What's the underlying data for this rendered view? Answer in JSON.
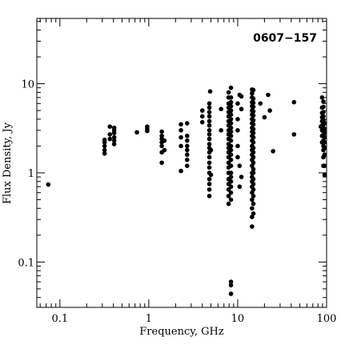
{
  "chart_data": {
    "type": "scatter",
    "title": "0607−157",
    "xlabel": "Frequency, GHz",
    "ylabel": "Flux Density, Jy",
    "xscale": "log",
    "yscale": "log",
    "xlim": [
      0.055,
      100
    ],
    "ylim": [
      0.031,
      54
    ],
    "xticks": [
      {
        "value": 0.1,
        "label": "0.1"
      },
      {
        "value": 1,
        "label": "1"
      },
      {
        "value": 10,
        "label": "10"
      },
      {
        "value": 100,
        "label": "100"
      }
    ],
    "yticks": [
      {
        "value": 0.1,
        "label": "0.1"
      },
      {
        "value": 1,
        "label": "1"
      },
      {
        "value": 10,
        "label": "10"
      }
    ],
    "grid": false,
    "legend": "none",
    "marker_color": "#000000",
    "points": [
      [
        0.074,
        0.74
      ],
      [
        0.318,
        1.65
      ],
      [
        0.318,
        1.8
      ],
      [
        0.318,
        2.0
      ],
      [
        0.318,
        2.2
      ],
      [
        0.318,
        2.35
      ],
      [
        0.365,
        2.4
      ],
      [
        0.365,
        2.7
      ],
      [
        0.365,
        3.3
      ],
      [
        0.408,
        2.1
      ],
      [
        0.408,
        2.3
      ],
      [
        0.408,
        2.5
      ],
      [
        0.408,
        2.8
      ],
      [
        0.408,
        3.0
      ],
      [
        0.408,
        3.2
      ],
      [
        0.735,
        2.85
      ],
      [
        0.96,
        2.95
      ],
      [
        0.96,
        3.1
      ],
      [
        0.96,
        3.3
      ],
      [
        1.4,
        1.3
      ],
      [
        1.4,
        1.7
      ],
      [
        1.4,
        2.0
      ],
      [
        1.4,
        2.2
      ],
      [
        1.4,
        2.4
      ],
      [
        1.4,
        2.6
      ],
      [
        1.4,
        2.9
      ],
      [
        1.5,
        1.8
      ],
      [
        1.5,
        2.3
      ],
      [
        2.3,
        1.05
      ],
      [
        2.3,
        2.0
      ],
      [
        2.3,
        2.5
      ],
      [
        2.3,
        3.0
      ],
      [
        2.3,
        3.5
      ],
      [
        2.7,
        1.2
      ],
      [
        2.7,
        1.4
      ],
      [
        2.7,
        1.6
      ],
      [
        2.7,
        1.8
      ],
      [
        2.7,
        2.0
      ],
      [
        2.7,
        2.3
      ],
      [
        2.7,
        2.6
      ],
      [
        2.7,
        3.6
      ],
      [
        4.0,
        3.7
      ],
      [
        4.0,
        4.3
      ],
      [
        4.0,
        5.0
      ],
      [
        4.8,
        0.55
      ],
      [
        4.8,
        0.65
      ],
      [
        4.8,
        0.75
      ],
      [
        4.8,
        0.85
      ],
      [
        4.8,
        1.0
      ],
      [
        4.8,
        1.15
      ],
      [
        4.8,
        1.3
      ],
      [
        4.8,
        1.5
      ],
      [
        4.8,
        1.7
      ],
      [
        4.8,
        1.9
      ],
      [
        4.8,
        2.1
      ],
      [
        4.8,
        2.4
      ],
      [
        4.8,
        2.7
      ],
      [
        4.8,
        3.0
      ],
      [
        4.8,
        3.4
      ],
      [
        4.8,
        3.8
      ],
      [
        4.8,
        4.3
      ],
      [
        4.8,
        4.8
      ],
      [
        4.8,
        5.4
      ],
      [
        4.8,
        6.0
      ],
      [
        4.9,
        8.2
      ],
      [
        5.0,
        0.95
      ],
      [
        5.0,
        1.8
      ],
      [
        6.5,
        3.0
      ],
      [
        6.5,
        5.2
      ],
      [
        7.9,
        0.45
      ],
      [
        7.9,
        0.55
      ],
      [
        7.9,
        0.65
      ],
      [
        7.9,
        0.75
      ],
      [
        7.9,
        0.85
      ],
      [
        7.9,
        1.0
      ],
      [
        7.9,
        1.15
      ],
      [
        7.9,
        1.3
      ],
      [
        7.9,
        1.5
      ],
      [
        7.9,
        1.7
      ],
      [
        7.9,
        1.9
      ],
      [
        7.9,
        2.1
      ],
      [
        7.9,
        2.4
      ],
      [
        7.9,
        2.7
      ],
      [
        7.9,
        3.0
      ],
      [
        7.9,
        3.4
      ],
      [
        7.9,
        3.8
      ],
      [
        7.9,
        4.3
      ],
      [
        7.9,
        4.8
      ],
      [
        7.9,
        5.4
      ],
      [
        7.9,
        6.0
      ],
      [
        7.9,
        7.0
      ],
      [
        7.9,
        8.0
      ],
      [
        8.4,
        0.044
      ],
      [
        8.4,
        0.055
      ],
      [
        8.4,
        0.06
      ],
      [
        8.4,
        0.5
      ],
      [
        8.4,
        0.6
      ],
      [
        8.4,
        0.7
      ],
      [
        8.4,
        0.8
      ],
      [
        8.4,
        0.9
      ],
      [
        8.4,
        1.0
      ],
      [
        8.4,
        1.2
      ],
      [
        8.4,
        1.4
      ],
      [
        8.4,
        1.6
      ],
      [
        8.4,
        1.8
      ],
      [
        8.4,
        2.0
      ],
      [
        8.4,
        2.3
      ],
      [
        8.4,
        2.6
      ],
      [
        8.4,
        2.9
      ],
      [
        8.4,
        3.2
      ],
      [
        8.4,
        3.6
      ],
      [
        8.4,
        4.0
      ],
      [
        8.4,
        4.5
      ],
      [
        8.4,
        5.0
      ],
      [
        8.4,
        5.6
      ],
      [
        8.4,
        6.2
      ],
      [
        8.4,
        7.0
      ],
      [
        8.4,
        9.0
      ],
      [
        10.0,
        1.5
      ],
      [
        10.0,
        2.0
      ],
      [
        10.0,
        3.0
      ],
      [
        10.0,
        4.0
      ],
      [
        10.0,
        6.0
      ],
      [
        10.5,
        0.7
      ],
      [
        10.5,
        1.2
      ],
      [
        10.5,
        7.5
      ],
      [
        11.0,
        0.9
      ],
      [
        11.0,
        5.2
      ],
      [
        11.0,
        7.2
      ],
      [
        14.5,
        0.25
      ],
      [
        14.5,
        0.32
      ],
      [
        14.5,
        0.4
      ],
      [
        14.5,
        0.5
      ],
      [
        14.5,
        0.6
      ],
      [
        14.5,
        0.7
      ],
      [
        14.5,
        0.8
      ],
      [
        14.5,
        0.9
      ],
      [
        14.5,
        1.0
      ],
      [
        14.5,
        1.2
      ],
      [
        14.5,
        1.4
      ],
      [
        14.5,
        1.6
      ],
      [
        14.5,
        1.8
      ],
      [
        14.5,
        2.0
      ],
      [
        14.5,
        2.3
      ],
      [
        14.5,
        2.6
      ],
      [
        14.5,
        2.9
      ],
      [
        14.5,
        3.2
      ],
      [
        14.5,
        3.6
      ],
      [
        14.5,
        4.0
      ],
      [
        14.5,
        4.5
      ],
      [
        14.5,
        5.0
      ],
      [
        14.5,
        5.6
      ],
      [
        14.5,
        6.2
      ],
      [
        14.5,
        7.0
      ],
      [
        14.5,
        7.8
      ],
      [
        14.5,
        8.6
      ],
      [
        15.0,
        0.35
      ],
      [
        15.0,
        0.45
      ],
      [
        15.0,
        0.55
      ],
      [
        15.0,
        0.65
      ],
      [
        15.0,
        0.75
      ],
      [
        15.0,
        0.85
      ],
      [
        15.0,
        1.0
      ],
      [
        15.0,
        1.1
      ],
      [
        15.0,
        1.3
      ],
      [
        15.0,
        1.5
      ],
      [
        15.0,
        1.7
      ],
      [
        15.0,
        1.9
      ],
      [
        15.0,
        2.2
      ],
      [
        15.0,
        2.5
      ],
      [
        15.0,
        2.8
      ],
      [
        15.0,
        3.1
      ],
      [
        15.0,
        3.5
      ],
      [
        15.0,
        3.9
      ],
      [
        15.0,
        4.4
      ],
      [
        15.0,
        4.9
      ],
      [
        15.0,
        5.5
      ],
      [
        15.0,
        6.1
      ],
      [
        15.0,
        6.8
      ],
      [
        15.0,
        8.5
      ],
      [
        18.0,
        6.0
      ],
      [
        20.0,
        4.2
      ],
      [
        22.0,
        7.5
      ],
      [
        23.0,
        5.0
      ],
      [
        25.0,
        1.75
      ],
      [
        43.0,
        6.2
      ],
      [
        43.0,
        2.7
      ],
      [
        86.0,
        3.3
      ],
      [
        89.0,
        2.2
      ],
      [
        89.0,
        2.6
      ],
      [
        89.0,
        3.0
      ],
      [
        89.0,
        3.4
      ],
      [
        89.0,
        3.8
      ],
      [
        89.0,
        4.2
      ],
      [
        89.0,
        4.7
      ],
      [
        89.0,
        5.4
      ],
      [
        89.0,
        7.0
      ],
      [
        92.0,
        1.2
      ],
      [
        92.0,
        1.5
      ],
      [
        92.0,
        1.8
      ],
      [
        92.0,
        2.0
      ],
      [
        92.0,
        2.3
      ],
      [
        92.0,
        2.6
      ],
      [
        92.0,
        2.9
      ],
      [
        92.0,
        3.2
      ],
      [
        92.0,
        3.5
      ],
      [
        92.0,
        3.9
      ],
      [
        92.0,
        4.3
      ],
      [
        92.0,
        4.8
      ],
      [
        92.0,
        5.5
      ],
      [
        92.0,
        6.3
      ],
      [
        95.0,
        0.95
      ],
      [
        95.0,
        1.2
      ],
      [
        95.0,
        1.6
      ],
      [
        95.0,
        1.9
      ],
      [
        95.0,
        2.2
      ],
      [
        95.0,
        2.5
      ],
      [
        95.0,
        2.8
      ],
      [
        95.0,
        3.1
      ],
      [
        95.0,
        3.6
      ]
    ]
  }
}
